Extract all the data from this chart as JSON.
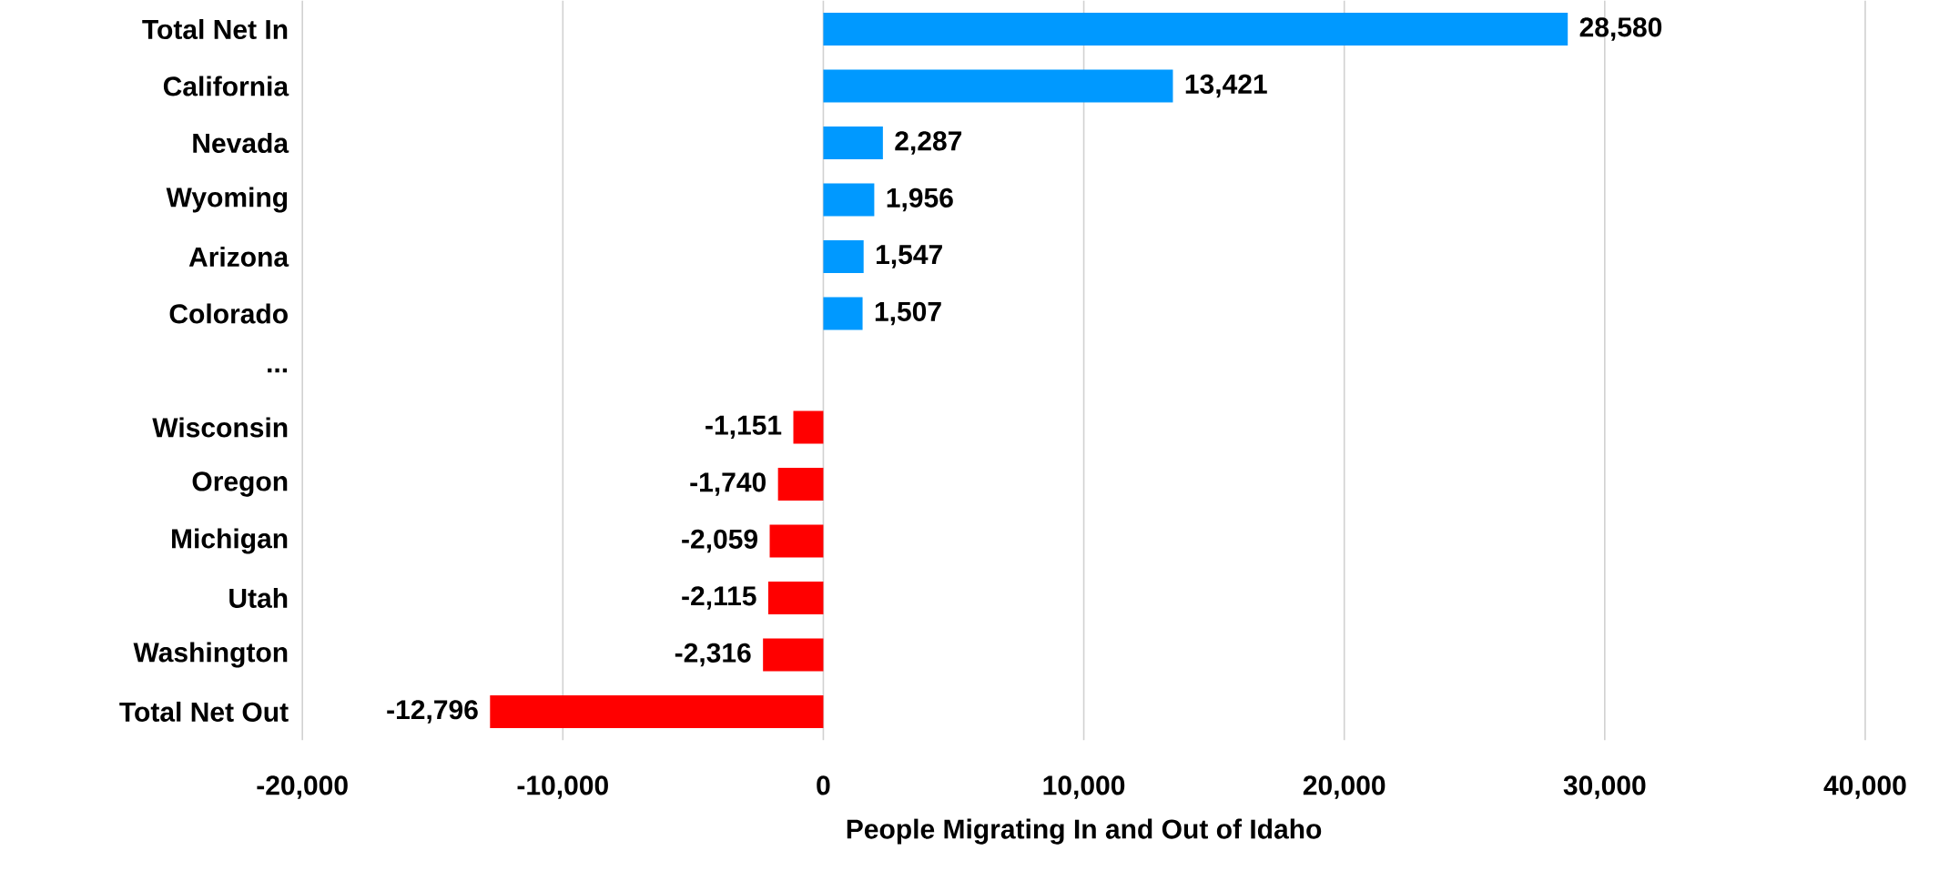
{
  "chart_data": {
    "type": "bar",
    "orientation": "horizontal",
    "xlabel": "People Migrating In and Out of Idaho",
    "categories": [
      "Total Net In",
      "California",
      "Nevada",
      "Wyoming",
      "Arizona",
      "Colorado",
      "...",
      "Wisconsin",
      "Oregon",
      "Michigan",
      "Utah",
      "Washington",
      "Total Net Out"
    ],
    "values": [
      28580,
      13421,
      2287,
      1956,
      1547,
      1507,
      null,
      -1151,
      -1740,
      -2059,
      -2115,
      -2316,
      -12796
    ],
    "value_labels": [
      "28,580",
      "13,421",
      "2,287",
      "1,956",
      "1,547",
      "1,507",
      null,
      "-1,151",
      "-1,740",
      "-2,059",
      "-2,115",
      "-2,316",
      "-12,796"
    ],
    "colors": [
      "#0099ff",
      "#0099ff",
      "#0099ff",
      "#0099ff",
      "#0099ff",
      "#0099ff",
      "#0099ff",
      "#ff0000",
      "#ff0000",
      "#ff0000",
      "#ff0000",
      "#ff0000",
      "#ff0000"
    ],
    "xlim": [
      -20000,
      40000
    ],
    "xticks": [
      {
        "value": -20000,
        "label": "-20,000"
      },
      {
        "value": -10000,
        "label": "-10,000"
      },
      {
        "value": 0,
        "label": "0"
      },
      {
        "value": 10000,
        "label": "10,000"
      },
      {
        "value": 20000,
        "label": "20,000"
      },
      {
        "value": 30000,
        "label": "30,000"
      },
      {
        "value": 40000,
        "label": "40,000"
      }
    ],
    "grid": "x"
  }
}
